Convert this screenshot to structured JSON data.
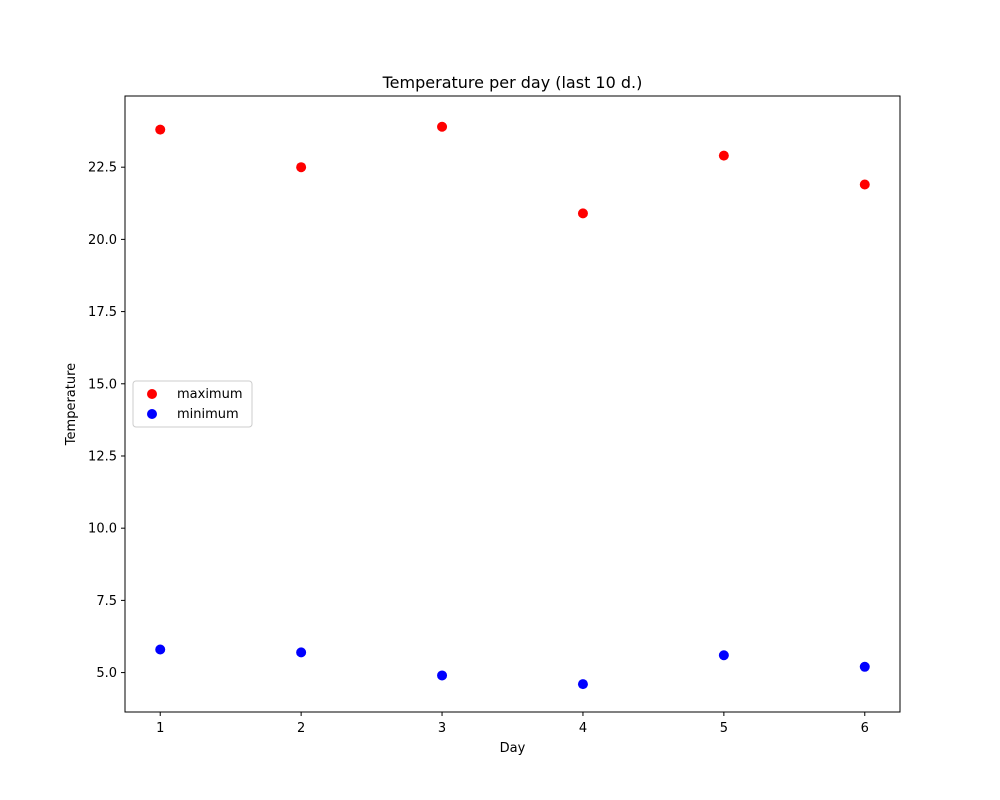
{
  "chart_data": {
    "type": "scatter",
    "title": "Temperature per day (last 10 d.)",
    "xlabel": "Day",
    "ylabel": "Temperature",
    "x": [
      1,
      2,
      3,
      4,
      5,
      6
    ],
    "x_ticks": [
      "1",
      "2",
      "3",
      "4",
      "5",
      "6"
    ],
    "y_ticks": [
      "5.0",
      "7.5",
      "10.0",
      "12.5",
      "15.0",
      "17.5",
      "20.0",
      "22.5"
    ],
    "y_tick_values": [
      5.0,
      7.5,
      10.0,
      12.5,
      15.0,
      17.5,
      20.0,
      22.5
    ],
    "xlim": [
      0.75,
      6.25
    ],
    "ylim": [
      3.635,
      24.965
    ],
    "grid": false,
    "legend_position": "center-left",
    "series": [
      {
        "name": "maximum",
        "color": "#ff0000",
        "values": [
          23.8,
          22.5,
          23.9,
          20.9,
          22.9,
          21.9
        ]
      },
      {
        "name": "minimum",
        "color": "#0000ff",
        "values": [
          5.8,
          5.7,
          4.9,
          4.6,
          5.6,
          5.2
        ]
      }
    ]
  }
}
